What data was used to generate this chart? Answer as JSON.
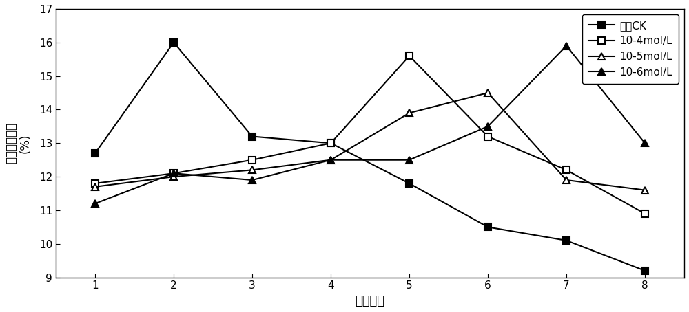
{
  "x": [
    1,
    2,
    3,
    4,
    5,
    6,
    7,
    8
  ],
  "series": [
    {
      "label": "转色CK",
      "values": [
        12.7,
        16.0,
        13.2,
        13.0,
        11.8,
        10.5,
        10.1,
        9.2
      ],
      "marker": "s",
      "fillstyle": "full"
    },
    {
      "label": "10-4mol/L",
      "values": [
        11.8,
        12.1,
        12.5,
        13.0,
        15.6,
        13.2,
        12.2,
        10.9
      ],
      "marker": "s",
      "fillstyle": "none"
    },
    {
      "label": "10-5mol/L",
      "values": [
        11.7,
        12.0,
        12.2,
        12.5,
        13.9,
        14.5,
        11.9,
        11.6
      ],
      "marker": "^",
      "fillstyle": "none"
    },
    {
      "label": "10-6mol/L",
      "values": [
        11.2,
        12.1,
        11.9,
        12.5,
        12.5,
        13.5,
        15.9,
        13.0
      ],
      "marker": "^",
      "fillstyle": "full"
    }
  ],
  "xlabel": "赮藏天数",
  "ylabel_line1": "可溶性固形物",
  "ylabel_line2": "(%)",
  "ylim": [
    9,
    17
  ],
  "yticks": [
    9,
    10,
    11,
    12,
    13,
    14,
    15,
    16,
    17
  ],
  "xticks": [
    1,
    2,
    3,
    4,
    5,
    6,
    7,
    8
  ],
  "linewidth": 1.5,
  "markersize": 7
}
